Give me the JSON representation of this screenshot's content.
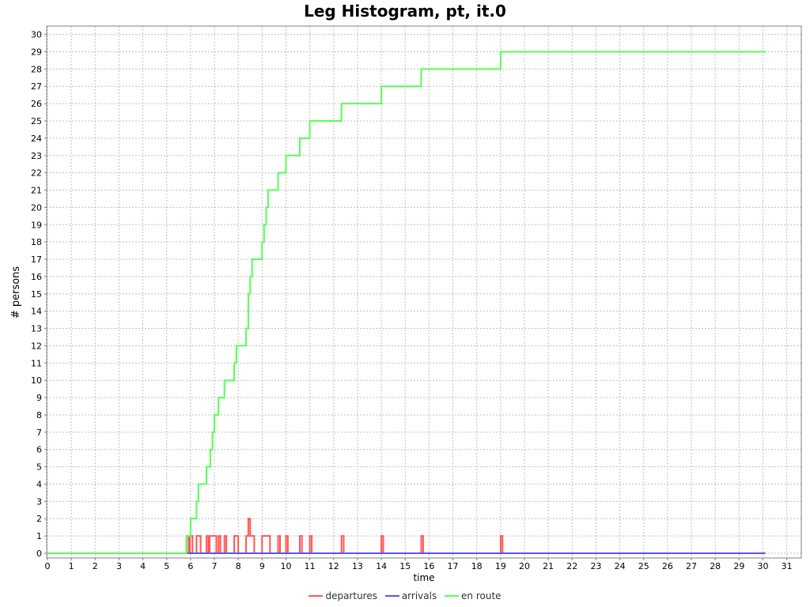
{
  "chart_data": {
    "type": "line",
    "title": "Leg Histogram, pt, it.0",
    "xlabel": "time",
    "ylabel": "# persons",
    "xlim": [
      0,
      31.5
    ],
    "ylim": [
      0,
      30.5
    ],
    "x_ticks": [
      0,
      1,
      2,
      3,
      4,
      5,
      6,
      7,
      8,
      9,
      10,
      11,
      12,
      13,
      14,
      15,
      16,
      17,
      18,
      19,
      20,
      21,
      22,
      23,
      24,
      25,
      26,
      27,
      28,
      29,
      30,
      31
    ],
    "y_ticks": [
      0,
      1,
      2,
      3,
      4,
      5,
      6,
      7,
      8,
      9,
      10,
      11,
      12,
      13,
      14,
      15,
      16,
      17,
      18,
      19,
      20,
      21,
      22,
      23,
      24,
      25,
      26,
      27,
      28,
      29,
      30
    ],
    "grid": true,
    "step": true,
    "legend": "bottom",
    "series": [
      {
        "name": "departures",
        "color": "#ff5555",
        "points": [
          [
            0,
            0
          ],
          [
            5.83,
            1
          ],
          [
            5.92,
            0
          ],
          [
            5.97,
            1
          ],
          [
            6.0,
            1
          ],
          [
            6.08,
            0
          ],
          [
            6.25,
            1
          ],
          [
            6.42,
            0
          ],
          [
            6.67,
            1
          ],
          [
            6.75,
            0
          ],
          [
            6.8,
            1
          ],
          [
            7.0,
            1
          ],
          [
            7.08,
            0
          ],
          [
            7.17,
            1
          ],
          [
            7.25,
            0
          ],
          [
            7.42,
            1
          ],
          [
            7.5,
            0
          ],
          [
            7.83,
            1
          ],
          [
            8.0,
            0
          ],
          [
            8.33,
            1
          ],
          [
            8.42,
            2
          ],
          [
            8.5,
            1
          ],
          [
            8.67,
            0
          ],
          [
            9.0,
            1
          ],
          [
            9.33,
            0
          ],
          [
            9.67,
            1
          ],
          [
            9.75,
            0
          ],
          [
            10.0,
            1
          ],
          [
            10.08,
            0
          ],
          [
            10.58,
            1
          ],
          [
            10.67,
            0
          ],
          [
            11.0,
            1
          ],
          [
            11.08,
            0
          ],
          [
            12.33,
            1
          ],
          [
            12.42,
            0
          ],
          [
            14.0,
            1
          ],
          [
            14.08,
            0
          ],
          [
            15.67,
            1
          ],
          [
            15.75,
            0
          ],
          [
            19.0,
            1
          ],
          [
            19.08,
            0
          ],
          [
            30.1,
            0
          ]
        ]
      },
      {
        "name": "arrivals",
        "color": "#5555ff",
        "points": [
          [
            0,
            0
          ],
          [
            30.1,
            0
          ]
        ]
      },
      {
        "name": "en route",
        "color": "#55ff55",
        "points": [
          [
            0,
            0
          ],
          [
            5.83,
            1
          ],
          [
            6.0,
            2
          ],
          [
            6.25,
            3
          ],
          [
            6.33,
            4
          ],
          [
            6.67,
            5
          ],
          [
            6.83,
            6
          ],
          [
            6.92,
            7
          ],
          [
            7.0,
            8
          ],
          [
            7.17,
            9
          ],
          [
            7.42,
            10
          ],
          [
            7.83,
            11
          ],
          [
            7.92,
            12
          ],
          [
            8.33,
            13
          ],
          [
            8.42,
            15
          ],
          [
            8.5,
            16
          ],
          [
            8.58,
            17
          ],
          [
            9.0,
            18
          ],
          [
            9.08,
            19
          ],
          [
            9.17,
            20
          ],
          [
            9.25,
            21
          ],
          [
            9.67,
            22
          ],
          [
            10.0,
            23
          ],
          [
            10.58,
            24
          ],
          [
            11.0,
            25
          ],
          [
            12.33,
            26
          ],
          [
            14.0,
            27
          ],
          [
            15.67,
            28
          ],
          [
            19.0,
            29
          ],
          [
            30.1,
            29
          ]
        ]
      }
    ]
  }
}
